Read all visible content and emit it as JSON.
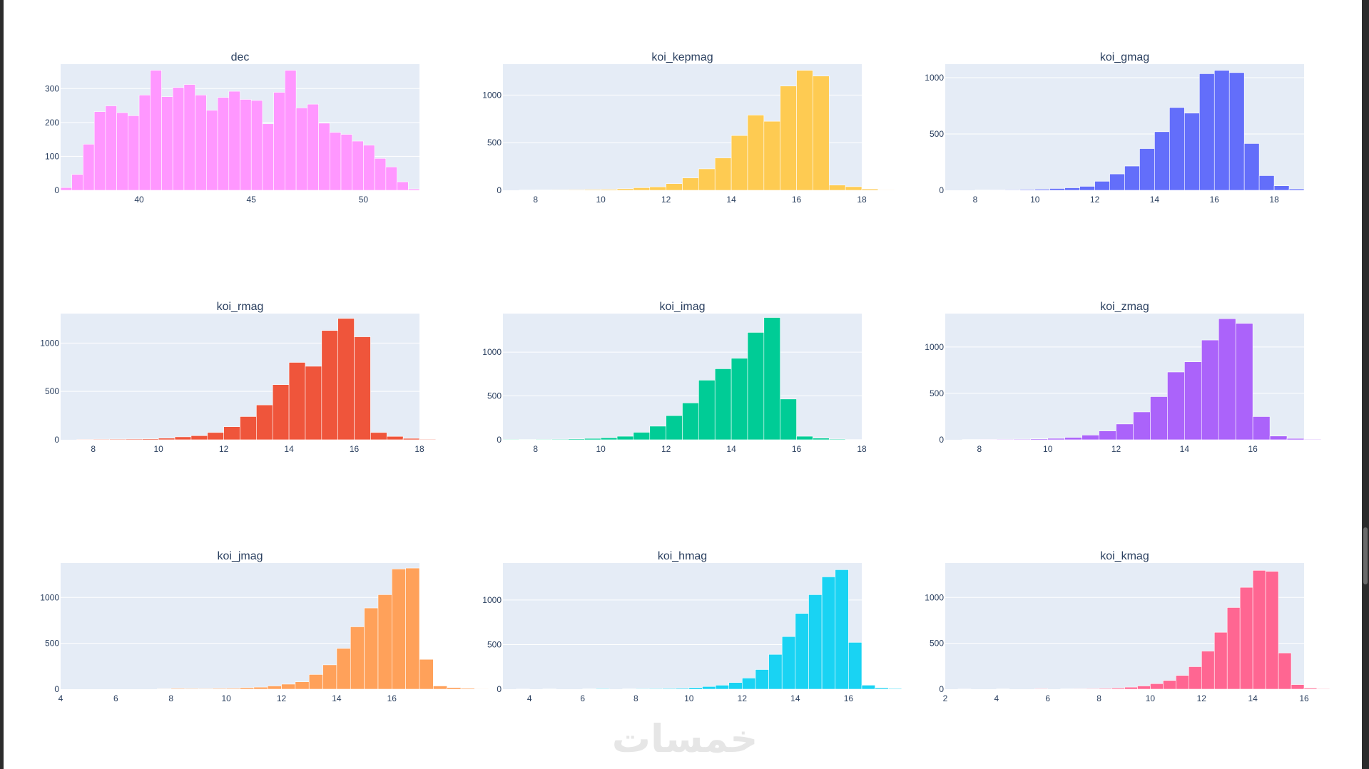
{
  "watermark": {
    "text": "خمسات",
    "color": "#e6e6e6"
  },
  "plot_style": {
    "plot_bg": "#E5ECF6",
    "grid_color": "#ffffff",
    "font_color": "#2a3f5f"
  },
  "chart_data": [
    {
      "type": "bar",
      "title": "dec",
      "color": "#FF97FF",
      "xrange": [
        36.5,
        52.5
      ],
      "ylim": [
        0,
        372
      ],
      "xticks": [
        40,
        45,
        50
      ],
      "yticks": [
        0,
        100,
        200,
        300
      ],
      "bin_start": 36.5,
      "bin_width": 0.5,
      "values": [
        8,
        47,
        136,
        232,
        249,
        229,
        220,
        281,
        354,
        276,
        303,
        312,
        281,
        236,
        274,
        292,
        268,
        265,
        196,
        289,
        354,
        243,
        254,
        198,
        171,
        165,
        145,
        133,
        94,
        69,
        25,
        4
      ]
    },
    {
      "type": "bar",
      "title": "koi_kepmag",
      "color": "#FECB52",
      "xrange": [
        7,
        18
      ],
      "ylim": [
        0,
        1325
      ],
      "xticks": [
        8,
        10,
        12,
        14,
        16,
        18
      ],
      "yticks": [
        0,
        500,
        1000
      ],
      "bin_start": 7,
      "bin_width": 0.5,
      "values": [
        0,
        3,
        4,
        5,
        6,
        8,
        10,
        16,
        27,
        36,
        70,
        130,
        225,
        340,
        575,
        790,
        725,
        1095,
        1260,
        1200,
        55,
        38,
        14,
        5
      ]
    },
    {
      "type": "bar",
      "title": "koi_gmag",
      "color": "#636EFA",
      "xrange": [
        7,
        19
      ],
      "ylim": [
        0,
        1120
      ],
      "xticks": [
        8,
        10,
        12,
        14,
        16,
        18
      ],
      "yticks": [
        0,
        500,
        1000
      ],
      "bin_start": 7,
      "bin_width": 0.5,
      "values": [
        0,
        0,
        3,
        4,
        5,
        7,
        10,
        16,
        22,
        35,
        80,
        145,
        215,
        370,
        520,
        735,
        685,
        1035,
        1065,
        1045,
        415,
        130,
        40,
        12
      ]
    },
    {
      "type": "bar",
      "title": "koi_rmag",
      "color": "#EF553B",
      "xrange": [
        7,
        18
      ],
      "ylim": [
        0,
        1305
      ],
      "xticks": [
        8,
        10,
        12,
        14,
        16,
        18
      ],
      "yticks": [
        0,
        500,
        1000
      ],
      "bin_start": 7,
      "bin_width": 0.5,
      "values": [
        0,
        5,
        6,
        7,
        8,
        10,
        16,
        30,
        42,
        75,
        135,
        240,
        360,
        570,
        800,
        760,
        1130,
        1255,
        1065,
        75,
        35,
        14,
        6
      ]
    },
    {
      "type": "bar",
      "title": "koi_imag",
      "color": "#00CC96",
      "xrange": [
        7,
        18
      ],
      "ylim": [
        0,
        1440
      ],
      "xticks": [
        8,
        10,
        12,
        14,
        16,
        18
      ],
      "yticks": [
        0,
        500,
        1000
      ],
      "bin_start": 7,
      "bin_width": 0.5,
      "values": [
        6,
        5,
        6,
        7,
        10,
        15,
        22,
        40,
        85,
        155,
        275,
        420,
        680,
        810,
        930,
        1225,
        1395,
        465,
        40,
        18,
        8,
        3
      ]
    },
    {
      "type": "bar",
      "title": "koi_zmag",
      "color": "#AB63FA",
      "xrange": [
        7,
        17.5
      ],
      "ylim": [
        0,
        1360
      ],
      "xticks": [
        8,
        10,
        12,
        14,
        16
      ],
      "yticks": [
        0,
        500,
        1000
      ],
      "bin_start": 7,
      "bin_width": 0.5,
      "values": [
        0,
        3,
        5,
        6,
        7,
        10,
        15,
        25,
        50,
        95,
        170,
        300,
        465,
        730,
        840,
        1075,
        1305,
        1255,
        250,
        40,
        14,
        6
      ]
    },
    {
      "type": "bar",
      "title": "koi_jmag",
      "color": "#FFA15A",
      "xrange": [
        4,
        17
      ],
      "ylim": [
        0,
        1375
      ],
      "xticks": [
        4,
        6,
        8,
        10,
        12,
        14,
        16
      ],
      "yticks": [
        0,
        500,
        1000
      ],
      "bin_start": 4,
      "bin_width": 0.5,
      "values": [
        0,
        0,
        0,
        0,
        0,
        0,
        0,
        5,
        8,
        7,
        6,
        8,
        9,
        16,
        22,
        35,
        55,
        80,
        160,
        265,
        445,
        680,
        885,
        1030,
        1310,
        1320,
        325,
        35,
        18,
        10,
        5
      ]
    },
    {
      "type": "bar",
      "title": "koi_hmag",
      "color": "#19D3F3",
      "xrange": [
        3,
        16.5
      ],
      "ylim": [
        0,
        1415
      ],
      "xticks": [
        4,
        6,
        8,
        10,
        12,
        14,
        16
      ],
      "yticks": [
        0,
        500,
        1000
      ],
      "bin_start": 3,
      "bin_width": 0.5,
      "values": [
        0,
        2,
        0,
        3,
        0,
        0,
        4,
        7,
        0,
        4,
        6,
        7,
        8,
        10,
        18,
        30,
        45,
        75,
        125,
        220,
        390,
        590,
        850,
        1060,
        1260,
        1340,
        525,
        45,
        15,
        8
      ]
    },
    {
      "type": "bar",
      "title": "koi_kmag",
      "color": "#FF6692",
      "xrange": [
        2,
        16
      ],
      "ylim": [
        0,
        1375
      ],
      "xticks": [
        2,
        4,
        6,
        8,
        10,
        12,
        14,
        16
      ],
      "yticks": [
        0,
        500,
        1000
      ],
      "bin_start": 2,
      "bin_width": 0.5,
      "values": [
        0,
        2,
        0,
        0,
        3,
        0,
        0,
        6,
        0,
        4,
        5,
        6,
        8,
        12,
        22,
        35,
        60,
        95,
        150,
        245,
        415,
        620,
        890,
        1110,
        1295,
        1285,
        395,
        50,
        12,
        6
      ]
    }
  ]
}
